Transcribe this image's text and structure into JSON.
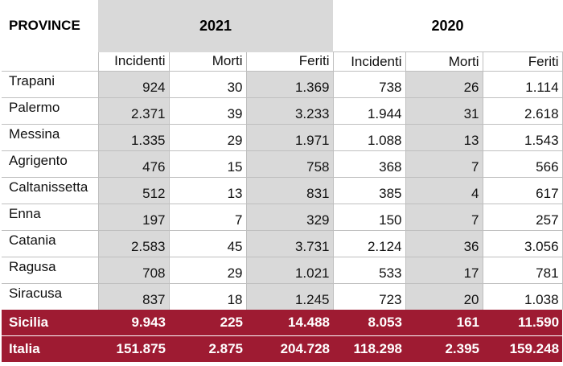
{
  "header": {
    "province_label": "PROVINCE",
    "year_1": "2021",
    "year_2": "2020",
    "col_incidenti": "Incidenti",
    "col_morti": "Morti",
    "col_feriti": "Feriti"
  },
  "rows": [
    {
      "name": "Trapani",
      "i21": "924",
      "m21": "30",
      "f21": "1.369",
      "i20": "738",
      "m20": "26",
      "f20": "1.114"
    },
    {
      "name": "Palermo",
      "i21": "2.371",
      "m21": "39",
      "f21": "3.233",
      "i20": "1.944",
      "m20": "31",
      "f20": "2.618"
    },
    {
      "name": "Messina",
      "i21": "1.335",
      "m21": "29",
      "f21": "1.971",
      "i20": "1.088",
      "m20": "13",
      "f20": "1.543"
    },
    {
      "name": "Agrigento",
      "i21": "476",
      "m21": "15",
      "f21": "758",
      "i20": "368",
      "m20": "7",
      "f20": "566"
    },
    {
      "name": "Caltanissetta",
      "i21": "512",
      "m21": "13",
      "f21": "831",
      "i20": "385",
      "m20": "4",
      "f20": "617"
    },
    {
      "name": "Enna",
      "i21": "197",
      "m21": "7",
      "f21": "329",
      "i20": "150",
      "m20": "7",
      "f20": "257"
    },
    {
      "name": "Catania",
      "i21": "2.583",
      "m21": "45",
      "f21": "3.731",
      "i20": "2.124",
      "m20": "36",
      "f20": "3.056"
    },
    {
      "name": "Ragusa",
      "i21": "708",
      "m21": "29",
      "f21": "1.021",
      "i20": "533",
      "m20": "17",
      "f20": "781"
    },
    {
      "name": "Siracusa",
      "i21": "837",
      "m21": "18",
      "f21": "1.245",
      "i20": "723",
      "m20": "20",
      "f20": "1.038"
    }
  ],
  "totals": [
    {
      "name": "Sicilia",
      "i21": "9.943",
      "m21": "225",
      "f21": "14.488",
      "i20": "8.053",
      "m20": "161",
      "f20": "11.590"
    },
    {
      "name": "Italia",
      "i21": "151.875",
      "m21": "2.875",
      "f21": "204.728",
      "i20": "118.298",
      "m20": "2.395",
      "f20": "159.248"
    }
  ],
  "colors": {
    "shade": "#d9d9d9",
    "total_bg": "#9e1b32",
    "total_text": "#ffffff"
  }
}
